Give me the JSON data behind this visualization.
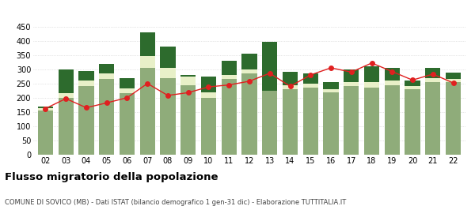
{
  "years": [
    "02",
    "03",
    "04",
    "05",
    "06",
    "07",
    "08",
    "09",
    "10",
    "11",
    "12",
    "13",
    "14",
    "15",
    "16",
    "17",
    "18",
    "19",
    "20",
    "21",
    "22"
  ],
  "iscritti_comuni": [
    155,
    200,
    240,
    265,
    215,
    305,
    270,
    245,
    200,
    265,
    285,
    225,
    230,
    235,
    220,
    240,
    235,
    245,
    230,
    255,
    255
  ],
  "iscritti_estero": [
    8,
    15,
    20,
    20,
    18,
    40,
    35,
    30,
    20,
    15,
    15,
    0,
    15,
    15,
    10,
    15,
    20,
    15,
    10,
    15,
    12
  ],
  "iscritti_altri": [
    5,
    85,
    35,
    35,
    35,
    85,
    75,
    5,
    55,
    50,
    55,
    170,
    45,
    35,
    25,
    45,
    55,
    45,
    20,
    35,
    22
  ],
  "cancellati": [
    162,
    197,
    165,
    182,
    200,
    250,
    208,
    218,
    238,
    245,
    258,
    286,
    240,
    280,
    305,
    290,
    322,
    292,
    262,
    283,
    252
  ],
  "color_comuni": "#8fac7a",
  "color_estero": "#e8f0c8",
  "color_altri": "#2d6b2d",
  "color_cancellati": "#e02020",
  "ylabel_max": 450,
  "yticks": [
    0,
    50,
    100,
    150,
    200,
    250,
    300,
    350,
    400,
    450
  ],
  "title": "Flusso migratorio della popolazione",
  "subtitle": "COMUNE DI SOVICO (MB) - Dati ISTAT (bilancio demografico 1 gen-31 dic) - Elaborazione TUTTITALIA.IT",
  "bg_color": "#ffffff",
  "grid_color": "#cccccc"
}
